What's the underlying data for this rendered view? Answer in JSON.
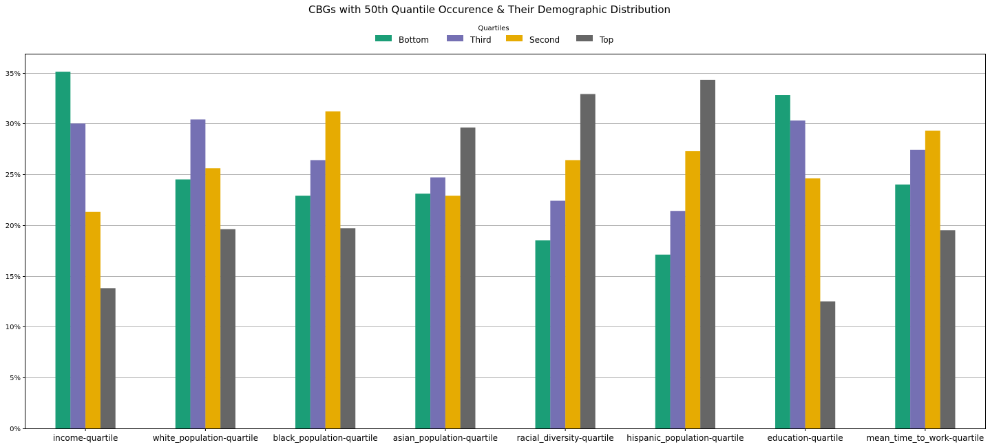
{
  "chart_data": {
    "type": "bar",
    "title": "CBGs with 50th Quantile Occurence & Their Demographic Distribution",
    "xlabel": "",
    "ylabel": "",
    "legend_title": "Quartiles",
    "legend_position": "top-center",
    "grid": "y",
    "ylim": [
      0,
      0.368
    ],
    "yticks": [
      0,
      0.05,
      0.1,
      0.15,
      0.2,
      0.25,
      0.3,
      0.35
    ],
    "ytick_labels": [
      "0%",
      "5%",
      "10%",
      "15%",
      "20%",
      "25%",
      "30%",
      "35%"
    ],
    "categories": [
      "income-quartile",
      "white_population-quartile",
      "black_population-quartile",
      "asian_population-quartile",
      "racial_diversity-quartile",
      "hispanic_population-quartile",
      "education-quartile",
      "mean_time_to_work-quartile"
    ],
    "series": [
      {
        "name": "Bottom",
        "color": "#1b9e77",
        "values": [
          0.351,
          0.245,
          0.229,
          0.231,
          0.185,
          0.171,
          0.328,
          0.24
        ]
      },
      {
        "name": "Third",
        "color": "#7570b3",
        "values": [
          0.3,
          0.304,
          0.264,
          0.247,
          0.224,
          0.214,
          0.303,
          0.274
        ]
      },
      {
        "name": "Second",
        "color": "#e6ab02",
        "values": [
          0.213,
          0.256,
          0.312,
          0.229,
          0.264,
          0.273,
          0.246,
          0.293
        ]
      },
      {
        "name": "Top",
        "color": "#666666",
        "values": [
          0.138,
          0.196,
          0.197,
          0.296,
          0.329,
          0.343,
          0.125,
          0.195
        ]
      }
    ]
  }
}
